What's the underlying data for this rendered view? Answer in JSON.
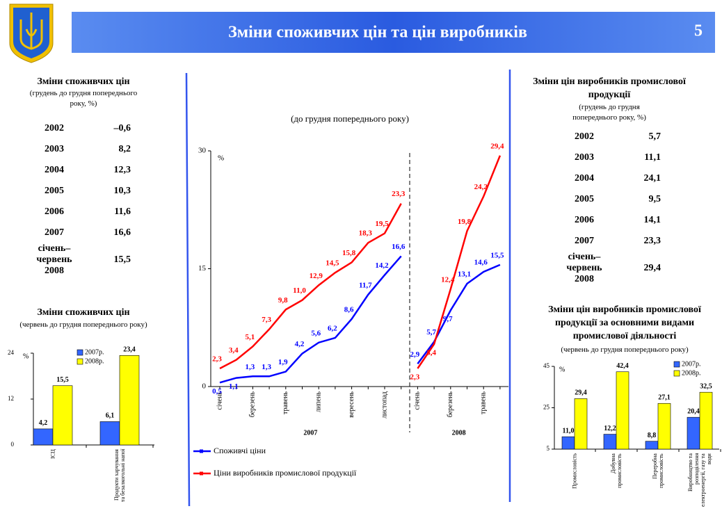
{
  "header": {
    "title": "Зміни споживчих цін та цін виробників",
    "page": "5"
  },
  "tables": [
    {
      "title": "Зміни споживчих цін",
      "subtitle": "(грудень до грудня попереднього року, %)",
      "rows": [
        [
          "2002",
          "–0,6"
        ],
        [
          "2003",
          "8,2"
        ],
        [
          "2004",
          "12,3"
        ],
        [
          "2005",
          "10,3"
        ],
        [
          "2006",
          "11,6"
        ],
        [
          "2007",
          "16,6"
        ],
        [
          "січень–червень 2008",
          "15,5"
        ]
      ]
    },
    {
      "title": "Зміни цін виробників промислової продукції",
      "subtitle": "(грудень до грудня попереднього року, %)",
      "rows": [
        [
          "2002",
          "5,7"
        ],
        [
          "2003",
          "11,1"
        ],
        [
          "2004",
          "24,1"
        ],
        [
          "2005",
          "9,5"
        ],
        [
          "2006",
          "14,1"
        ],
        [
          "2007",
          "23,3"
        ],
        [
          "січень–червень 2008",
          "29,4"
        ]
      ]
    }
  ],
  "chart_data": [
    {
      "type": "line",
      "subtitle": "(до грудня попереднього року)",
      "y_label": "%",
      "ylim": [
        0,
        30
      ],
      "yticks": [
        0,
        15,
        30
      ],
      "groups": [
        {
          "label": "2007",
          "categories": [
            "січень",
            null,
            "березень",
            null,
            "травень",
            null,
            "липень",
            null,
            "вересень",
            null,
            "листопад",
            null
          ]
        },
        {
          "label": "2008",
          "categories": [
            "січень",
            null,
            "березень",
            null,
            "травень",
            null
          ]
        }
      ],
      "series": [
        {
          "name": "Споживчі ціни",
          "color": "#0000ff",
          "values": [
            0.5,
            1.1,
            1.3,
            1.3,
            1.9,
            4.2,
            5.6,
            6.2,
            8.6,
            11.7,
            14.2,
            16.6,
            2.9,
            5.7,
            9.7,
            13.1,
            14.6,
            15.5
          ],
          "value_labels": [
            "0,5",
            "1,1",
            "1,3",
            "1,3",
            "1,9",
            "4,2",
            "5,6",
            "6,2",
            "8,6",
            "11,7",
            "14,2",
            "16,6",
            "2,9",
            "5,7",
            "9,7",
            "13,1",
            "14,6",
            "15,5"
          ]
        },
        {
          "name": "Ціни виробників промислової продукції",
          "color": "#ff0000",
          "values": [
            2.3,
            3.4,
            5.1,
            7.3,
            9.8,
            11.0,
            12.9,
            14.5,
            15.8,
            18.3,
            19.5,
            23.3,
            2.3,
            5.4,
            12.4,
            19.8,
            24.2,
            29.4
          ],
          "value_labels": [
            "2,3",
            "3,4",
            "5,1",
            "7,3",
            "9,8",
            "11,0",
            "12,9",
            "14,5",
            "15,8",
            "18,3",
            "19,5",
            "23,3",
            "2,3",
            "5,4",
            "12,4",
            "19,8",
            "24,2",
            "29,4"
          ]
        }
      ]
    },
    {
      "type": "bar",
      "title": "Зміни споживчих цін",
      "subtitle": "(червень до грудня попереднього року)",
      "y_label": "%",
      "ylim": [
        0,
        24
      ],
      "yticks": [
        0,
        12,
        24
      ],
      "categories": [
        "ІСЦ",
        "Продукти харчування та безалкогольні напої"
      ],
      "series": [
        {
          "name": "2007р.",
          "color": "#3366ff",
          "values": [
            4.2,
            6.1
          ],
          "value_labels": [
            "4,2",
            "6,1"
          ]
        },
        {
          "name": "2008р.",
          "color": "#ffff00",
          "values": [
            15.5,
            23.4
          ],
          "value_labels": [
            "15,5",
            "23,4"
          ]
        }
      ]
    },
    {
      "type": "bar",
      "title": "Зміни цін виробників промислової продукції за основними видами промислової діяльності",
      "subtitle": "(червень до грудня попереднього року)",
      "y_label": "%",
      "ylim": [
        5,
        45
      ],
      "yticks": [
        5,
        25,
        45
      ],
      "categories": [
        "Промисловість",
        "Добувна промисловість",
        "Переробна промисловість",
        "Виробництво та розподілення електроенергії, газу та води"
      ],
      "series": [
        {
          "name": "2007р.",
          "color": "#3366ff",
          "values": [
            11.0,
            12.2,
            8.8,
            20.4
          ],
          "value_labels": [
            "11,0",
            "12,2",
            "8,8",
            "20,4"
          ]
        },
        {
          "name": "2008р.",
          "color": "#ffff00",
          "values": [
            29.4,
            42.4,
            27.1,
            32.5
          ],
          "value_labels": [
            "29,4",
            "42,4",
            "27,1",
            "32,5"
          ]
        }
      ]
    }
  ]
}
